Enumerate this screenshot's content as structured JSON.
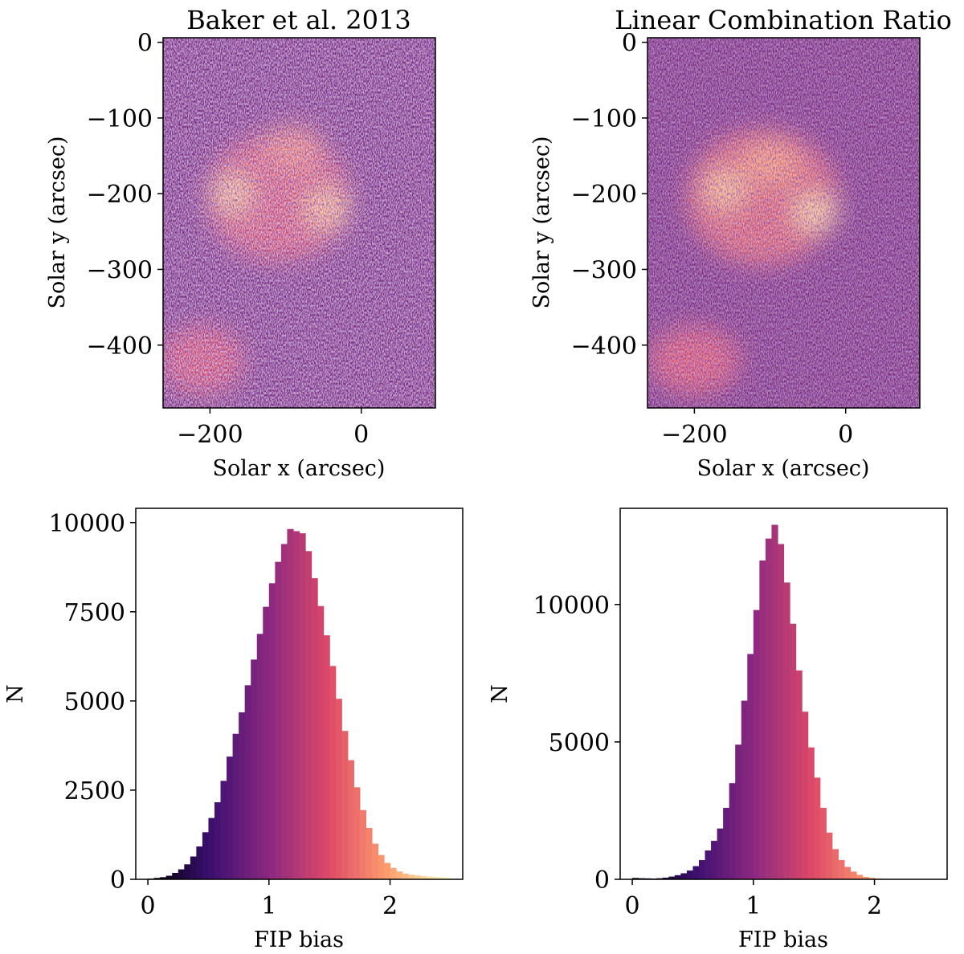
{
  "chart_data": [
    {
      "id": "map-left",
      "type": "heatmap",
      "title": "Baker et al. 2013",
      "xlabel": "Solar x (arcsec)",
      "ylabel": "Solar y (arcsec)",
      "xlim": [
        -262,
        98
      ],
      "ylim": [
        -483,
        6
      ],
      "xticks": [
        -200,
        0
      ],
      "yticks": [
        0,
        -100,
        -200,
        -300,
        -400
      ],
      "xtick_labels": [
        "−200",
        "0"
      ],
      "ytick_labels": [
        "0",
        "−100",
        "−200",
        "−300",
        "−400"
      ],
      "colormap": [
        "#000004",
        "#3b0f70",
        "#8c2981",
        "#de4968",
        "#fe9f6d",
        "#fcfdbf"
      ],
      "features": [
        {
          "x": -110,
          "y": -205,
          "rx": 95,
          "ry": 85,
          "value": 0.62
        },
        {
          "x": -170,
          "y": -200,
          "rx": 25,
          "ry": 25,
          "value": 0.88
        },
        {
          "x": -45,
          "y": -220,
          "rx": 30,
          "ry": 28,
          "value": 0.85
        },
        {
          "x": -90,
          "y": -140,
          "rx": 40,
          "ry": 30,
          "value": 0.72
        },
        {
          "x": -210,
          "y": -420,
          "rx": 55,
          "ry": 45,
          "value": 0.6
        }
      ]
    },
    {
      "id": "map-right",
      "type": "heatmap",
      "title": "Linear Combination Ratio",
      "xlabel": "Solar x (arcsec)",
      "ylabel": "Solar y (arcsec)",
      "xlim": [
        -262,
        98
      ],
      "ylim": [
        -483,
        6
      ],
      "xticks": [
        -200,
        0
      ],
      "yticks": [
        0,
        -100,
        -200,
        -300,
        -400
      ],
      "xtick_labels": [
        "−200",
        "0"
      ],
      "ytick_labels": [
        "0",
        "−100",
        "−200",
        "−300",
        "−400"
      ],
      "colormap": [
        "#000004",
        "#3b0f70",
        "#8c2981",
        "#de4968",
        "#fe9f6d",
        "#fcfdbf"
      ],
      "features": [
        {
          "x": -110,
          "y": -205,
          "rx": 100,
          "ry": 90,
          "value": 0.66
        },
        {
          "x": -160,
          "y": -195,
          "rx": 28,
          "ry": 28,
          "value": 0.86
        },
        {
          "x": -40,
          "y": -225,
          "rx": 30,
          "ry": 26,
          "value": 0.9
        },
        {
          "x": -100,
          "y": -160,
          "rx": 40,
          "ry": 30,
          "value": 0.78
        },
        {
          "x": -200,
          "y": -420,
          "rx": 60,
          "ry": 45,
          "value": 0.62
        }
      ]
    },
    {
      "id": "hist-left",
      "type": "bar",
      "xlabel": "FIP bias",
      "ylabel": "N",
      "xlim": [
        -0.1,
        2.6
      ],
      "ylim": [
        0,
        10400
      ],
      "xticks": [
        0,
        1,
        2
      ],
      "xtick_labels": [
        "0",
        "1",
        "2"
      ],
      "yticks": [
        0,
        2500,
        5000,
        7500,
        10000
      ],
      "ytick_labels": [
        "0",
        "2500",
        "5000",
        "7500",
        "10000"
      ],
      "bin_start": 0.0,
      "bin_width": 0.05,
      "values": [
        20,
        40,
        60,
        100,
        180,
        280,
        420,
        640,
        920,
        1320,
        1720,
        2160,
        2760,
        3440,
        4080,
        4680,
        5440,
        6160,
        6880,
        7640,
        8300,
        8900,
        9400,
        9820,
        9760,
        9700,
        9200,
        8440,
        7660,
        6840,
        5980,
        5060,
        4160,
        3340,
        2580,
        1940,
        1440,
        1000,
        680,
        460,
        320,
        220,
        160,
        130,
        110,
        90,
        80,
        70,
        60,
        50
      ]
    },
    {
      "id": "hist-right",
      "type": "bar",
      "xlabel": "FIP bias",
      "ylabel": "N",
      "xlim": [
        -0.1,
        2.6
      ],
      "ylim": [
        0,
        13500
      ],
      "xticks": [
        0,
        1,
        2
      ],
      "xtick_labels": [
        "0",
        "1",
        "2"
      ],
      "yticks": [
        0,
        5000,
        10000
      ],
      "ytick_labels": [
        "0",
        "5000",
        "10000"
      ],
      "bin_start": 0.0,
      "bin_width": 0.05,
      "values": [
        50,
        40,
        35,
        30,
        40,
        60,
        100,
        150,
        220,
        320,
        480,
        700,
        1050,
        1400,
        1850,
        2600,
        3500,
        4900,
        6500,
        8200,
        9800,
        11600,
        12400,
        12900,
        12200,
        10800,
        9300,
        7600,
        6100,
        4800,
        3700,
        2600,
        1700,
        1100,
        700,
        450,
        280,
        160,
        90,
        55,
        35,
        20,
        12,
        8,
        5,
        4,
        3,
        2,
        1,
        1
      ]
    }
  ]
}
